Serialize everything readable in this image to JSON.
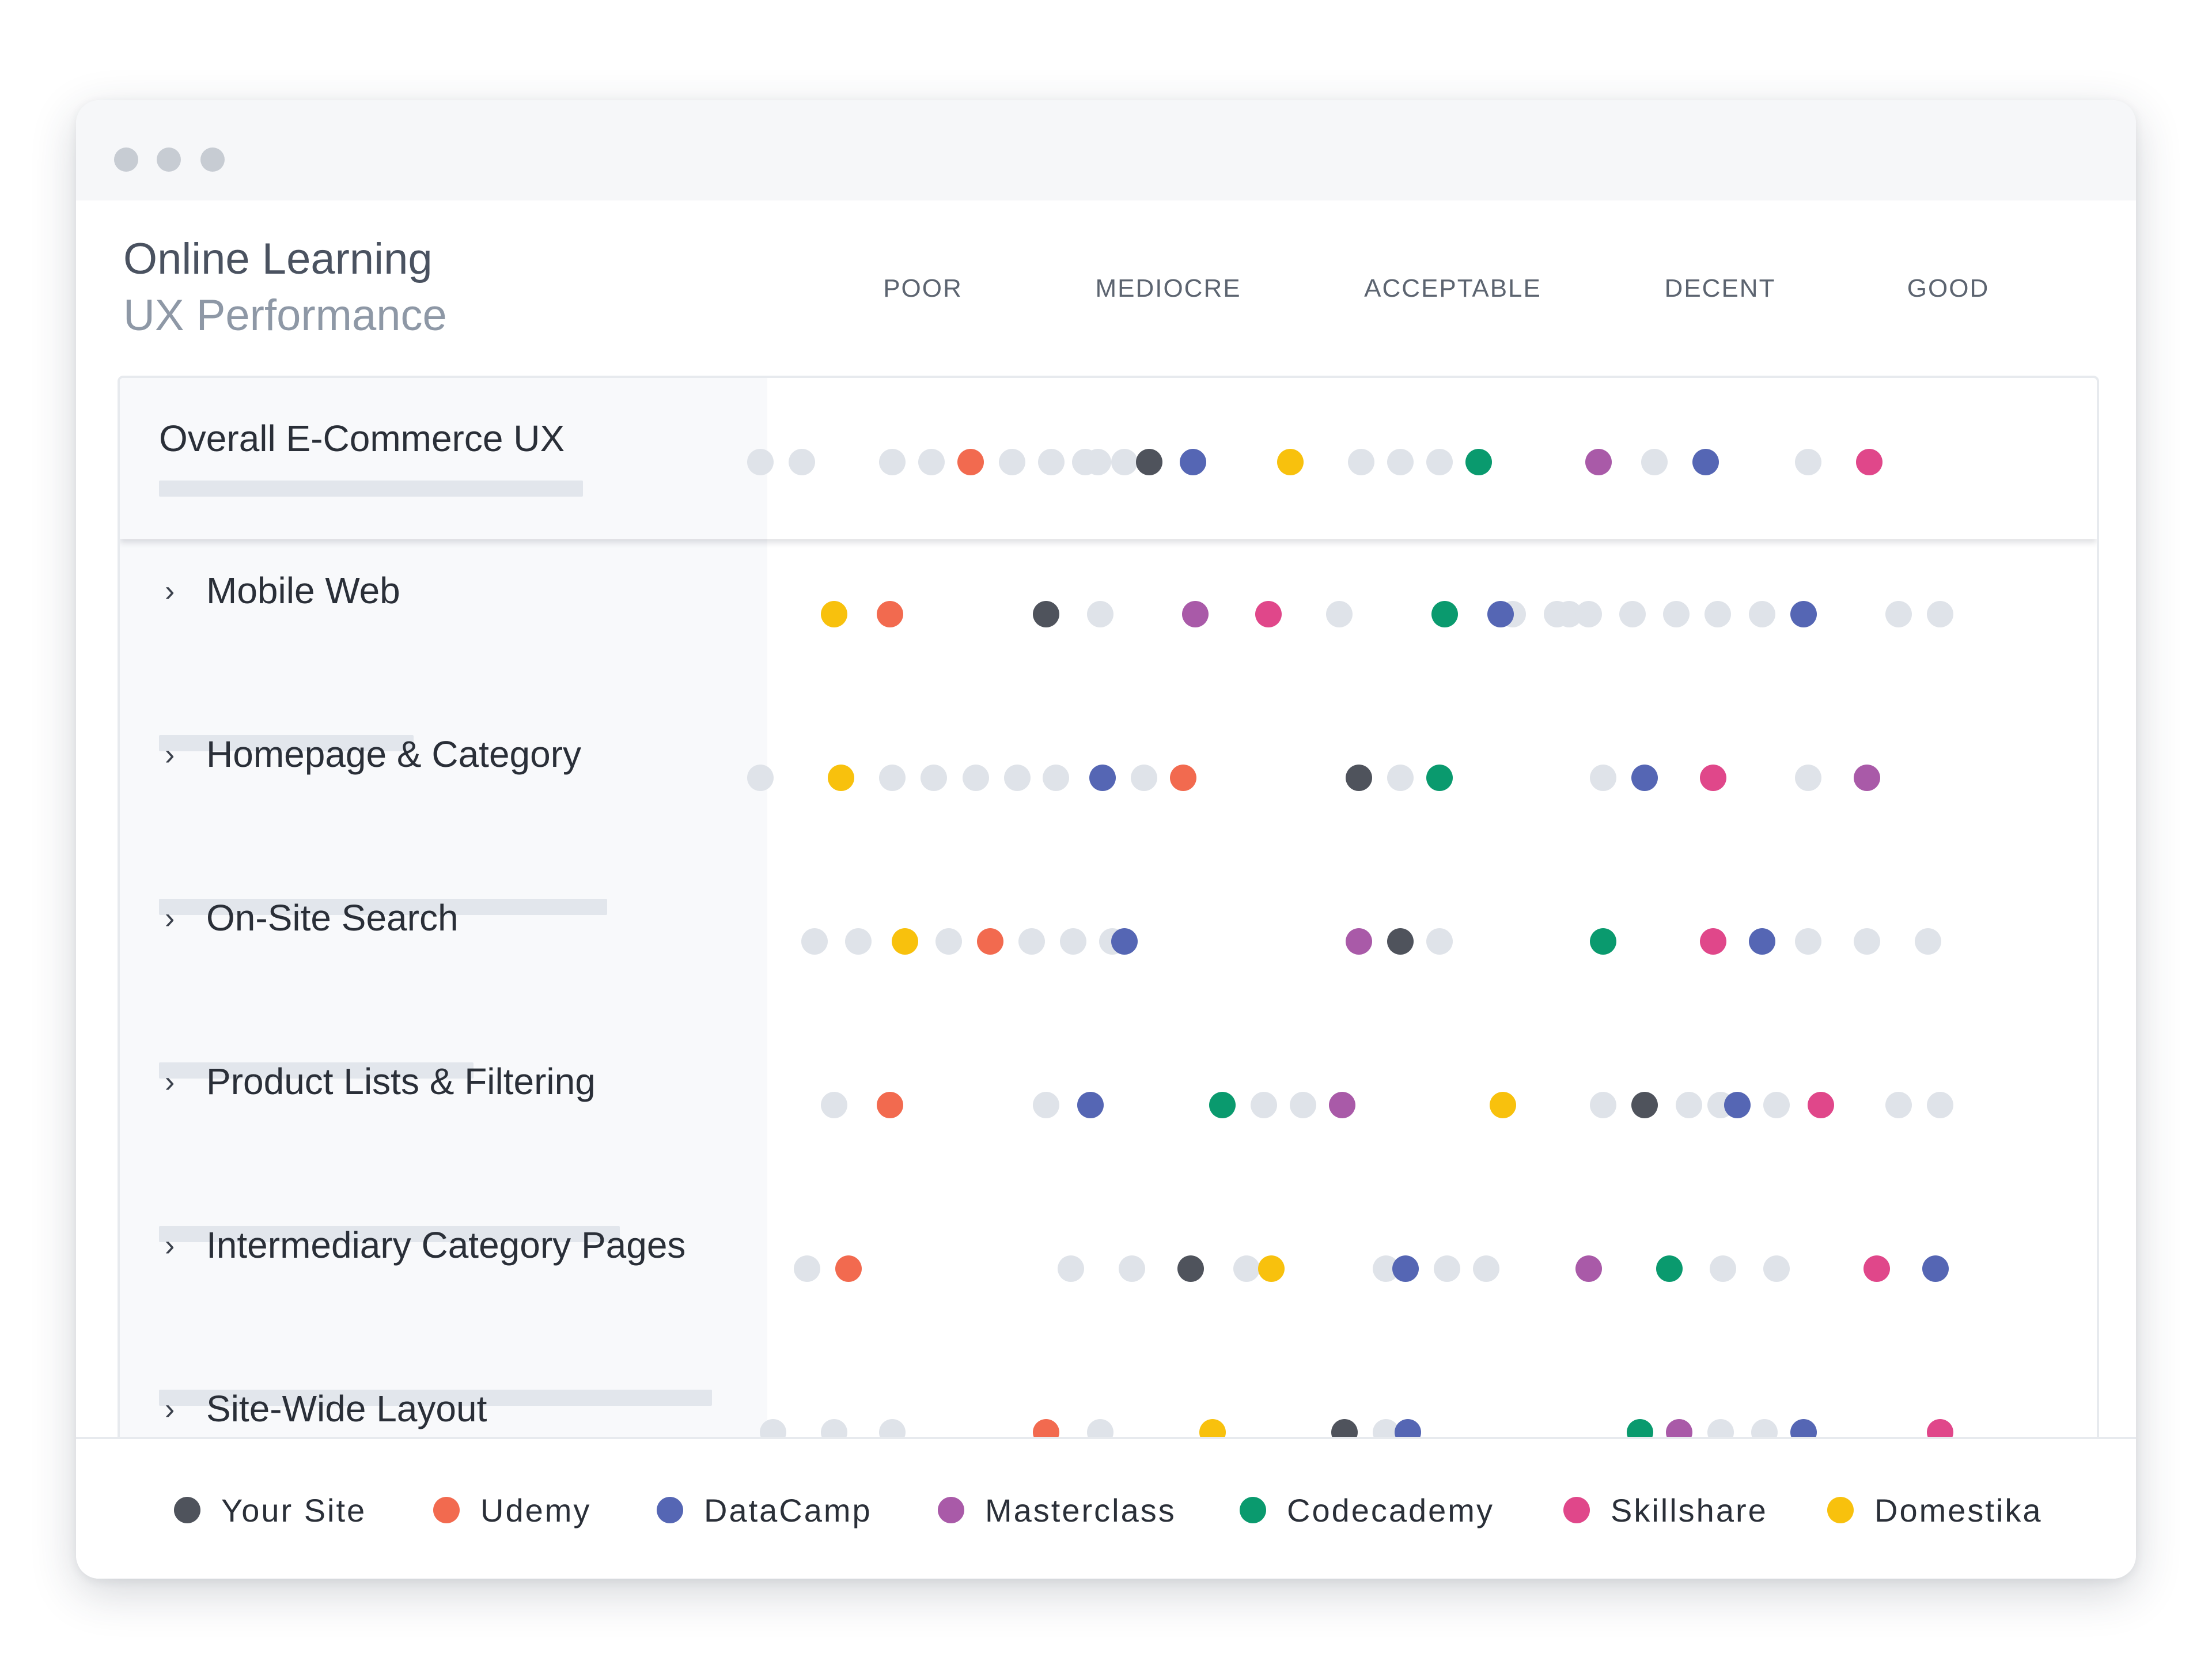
{
  "header": {
    "title": "Online Learning",
    "subtitle": "UX Performance"
  },
  "window_controls": [
    "dot-icon",
    "dot-icon",
    "dot-icon"
  ],
  "columns": [
    "POOR",
    "MEDIOCRE",
    "ACCEPTABLE",
    "DECENT",
    "GOOD"
  ],
  "colors": {
    "grey": "#dfe3e9",
    "Your Site": "#4f535c",
    "Udemy": "#f26a4f",
    "DataCamp": "#5566b4",
    "Masterclass": "#a95aa8",
    "Codecademy": "#0a9a6e",
    "Skillshare": "#e0478a",
    "Domestika": "#f8c10d"
  },
  "rows": [
    {
      "label": "Overall E-Commerce UX",
      "expandable": false
    },
    {
      "label": "Mobile Web",
      "expandable": true
    },
    {
      "label": "Homepage & Category",
      "expandable": true
    },
    {
      "label": "On-Site Search",
      "expandable": true
    },
    {
      "label": "Product Lists & Filtering",
      "expandable": true
    },
    {
      "label": "Intermediary Category Pages",
      "expandable": true
    },
    {
      "label": "Site-Wide Layout",
      "expandable": true
    }
  ],
  "legend": [
    {
      "label": "Your Site"
    },
    {
      "label": "Udemy"
    },
    {
      "label": "DataCamp"
    },
    {
      "label": "Masterclass"
    },
    {
      "label": "Codecademy"
    },
    {
      "label": "Skillshare"
    },
    {
      "label": "Domestika"
    }
  ],
  "chart_data": {
    "type": "scatter",
    "x_axis": "rating (0 = POOR, 4 = GOOD)",
    "xlim": [
      -0.55,
      4.45
    ],
    "categories_x": [
      "POOR",
      "MEDIOCRE",
      "ACCEPTABLE",
      "DECENT",
      "GOOD"
    ],
    "rows": [
      {
        "label": "Overall E-Commerce UX",
        "points": [
          {
            "x": -0.45,
            "s": "grey"
          },
          {
            "x": -0.28,
            "s": "grey"
          },
          {
            "x": 0.09,
            "s": "grey"
          },
          {
            "x": 0.25,
            "s": "grey"
          },
          {
            "x": 0.41,
            "s": "Udemy"
          },
          {
            "x": 0.58,
            "s": "grey"
          },
          {
            "x": 0.74,
            "s": "grey"
          },
          {
            "x": 0.88,
            "s": "grey"
          },
          {
            "x": 0.93,
            "s": "grey"
          },
          {
            "x": 1.04,
            "s": "grey"
          },
          {
            "x": 1.14,
            "s": "Your Site"
          },
          {
            "x": 1.32,
            "s": "DataCamp"
          },
          {
            "x": 1.72,
            "s": "Domestika"
          },
          {
            "x": 2.01,
            "s": "grey"
          },
          {
            "x": 2.17,
            "s": "grey"
          },
          {
            "x": 2.33,
            "s": "grey"
          },
          {
            "x": 2.49,
            "s": "Codecademy"
          },
          {
            "x": 2.98,
            "s": "Masterclass"
          },
          {
            "x": 3.21,
            "s": "grey"
          },
          {
            "x": 3.42,
            "s": "DataCamp"
          },
          {
            "x": 3.84,
            "s": "grey"
          },
          {
            "x": 4.09,
            "s": "Skillshare"
          }
        ]
      },
      {
        "label": "Mobile Web",
        "points": [
          {
            "x": -0.15,
            "s": "Domestika"
          },
          {
            "x": 0.08,
            "s": "Udemy"
          },
          {
            "x": 0.72,
            "s": "Your Site"
          },
          {
            "x": 0.94,
            "s": "grey"
          },
          {
            "x": 1.33,
            "s": "Masterclass"
          },
          {
            "x": 1.63,
            "s": "Skillshare"
          },
          {
            "x": 1.92,
            "s": "grey"
          },
          {
            "x": 2.35,
            "s": "Codecademy"
          },
          {
            "x": 2.58,
            "s": "DataCamp"
          },
          {
            "x": 2.63,
            "s": "grey"
          },
          {
            "x": 2.81,
            "s": "grey"
          },
          {
            "x": 2.86,
            "s": "grey"
          },
          {
            "x": 2.94,
            "s": "grey"
          },
          {
            "x": 3.12,
            "s": "grey"
          },
          {
            "x": 3.3,
            "s": "grey"
          },
          {
            "x": 3.47,
            "s": "grey"
          },
          {
            "x": 3.65,
            "s": "grey"
          },
          {
            "x": 3.82,
            "s": "DataCamp"
          },
          {
            "x": 4.21,
            "s": "grey"
          },
          {
            "x": 4.38,
            "s": "grey"
          }
        ]
      },
      {
        "label": "Homepage & Category",
        "points": [
          {
            "x": -0.45,
            "s": "grey"
          },
          {
            "x": -0.12,
            "s": "Domestika"
          },
          {
            "x": 0.09,
            "s": "grey"
          },
          {
            "x": 0.26,
            "s": "grey"
          },
          {
            "x": 0.43,
            "s": "grey"
          },
          {
            "x": 0.6,
            "s": "grey"
          },
          {
            "x": 0.76,
            "s": "grey"
          },
          {
            "x": 0.95,
            "s": "DataCamp"
          },
          {
            "x": 1.12,
            "s": "grey"
          },
          {
            "x": 1.28,
            "s": "Udemy"
          },
          {
            "x": 2.0,
            "s": "Your Site"
          },
          {
            "x": 2.17,
            "s": "grey"
          },
          {
            "x": 2.33,
            "s": "Codecademy"
          },
          {
            "x": 3.0,
            "s": "grey"
          },
          {
            "x": 3.17,
            "s": "DataCamp"
          },
          {
            "x": 3.45,
            "s": "Skillshare"
          },
          {
            "x": 3.84,
            "s": "grey"
          },
          {
            "x": 4.08,
            "s": "Masterclass"
          }
        ]
      },
      {
        "label": "On-Site Search",
        "points": [
          {
            "x": -0.23,
            "s": "grey"
          },
          {
            "x": -0.05,
            "s": "grey"
          },
          {
            "x": 0.14,
            "s": "Domestika"
          },
          {
            "x": 0.32,
            "s": "grey"
          },
          {
            "x": 0.49,
            "s": "Udemy"
          },
          {
            "x": 0.66,
            "s": "grey"
          },
          {
            "x": 0.83,
            "s": "grey"
          },
          {
            "x": 0.99,
            "s": "grey"
          },
          {
            "x": 1.04,
            "s": "DataCamp"
          },
          {
            "x": 2.0,
            "s": "Masterclass"
          },
          {
            "x": 2.17,
            "s": "Your Site"
          },
          {
            "x": 2.33,
            "s": "grey"
          },
          {
            "x": 3.0,
            "s": "Codecademy"
          },
          {
            "x": 3.45,
            "s": "Skillshare"
          },
          {
            "x": 3.65,
            "s": "DataCamp"
          },
          {
            "x": 3.84,
            "s": "grey"
          },
          {
            "x": 4.08,
            "s": "grey"
          },
          {
            "x": 4.33,
            "s": "grey"
          }
        ]
      },
      {
        "label": "Product Lists & Filtering",
        "points": [
          {
            "x": -0.15,
            "s": "grey"
          },
          {
            "x": 0.08,
            "s": "Udemy"
          },
          {
            "x": 0.72,
            "s": "grey"
          },
          {
            "x": 0.9,
            "s": "grey"
          },
          {
            "x": 0.9,
            "s": "DataCamp"
          },
          {
            "x": 1.44,
            "s": "Codecademy"
          },
          {
            "x": 1.61,
            "s": "grey"
          },
          {
            "x": 1.77,
            "s": "grey"
          },
          {
            "x": 1.93,
            "s": "Masterclass"
          },
          {
            "x": 2.59,
            "s": "Domestika"
          },
          {
            "x": 3.0,
            "s": "grey"
          },
          {
            "x": 3.17,
            "s": "Your Site"
          },
          {
            "x": 3.35,
            "s": "grey"
          },
          {
            "x": 3.48,
            "s": "grey"
          },
          {
            "x": 3.55,
            "s": "DataCamp"
          },
          {
            "x": 3.71,
            "s": "grey"
          },
          {
            "x": 3.89,
            "s": "Skillshare"
          },
          {
            "x": 4.21,
            "s": "grey"
          },
          {
            "x": 4.38,
            "s": "grey"
          }
        ]
      },
      {
        "label": "Intermediary Category Pages",
        "points": [
          {
            "x": -0.26,
            "s": "grey"
          },
          {
            "x": -0.09,
            "s": "Udemy"
          },
          {
            "x": 0.82,
            "s": "grey"
          },
          {
            "x": 1.07,
            "s": "grey"
          },
          {
            "x": 1.31,
            "s": "Your Site"
          },
          {
            "x": 1.54,
            "s": "grey"
          },
          {
            "x": 1.64,
            "s": "Domestika"
          },
          {
            "x": 2.11,
            "s": "grey"
          },
          {
            "x": 2.19,
            "s": "DataCamp"
          },
          {
            "x": 2.36,
            "s": "grey"
          },
          {
            "x": 2.52,
            "s": "grey"
          },
          {
            "x": 2.94,
            "s": "Masterclass"
          },
          {
            "x": 3.27,
            "s": "Codecademy"
          },
          {
            "x": 3.49,
            "s": "grey"
          },
          {
            "x": 3.71,
            "s": "grey"
          },
          {
            "x": 4.12,
            "s": "Skillshare"
          },
          {
            "x": 4.36,
            "s": "DataCamp"
          }
        ]
      },
      {
        "label": "Site-Wide Layout",
        "points": [
          {
            "x": -0.4,
            "s": "grey"
          },
          {
            "x": -0.15,
            "s": "grey"
          },
          {
            "x": 0.09,
            "s": "grey"
          },
          {
            "x": 0.72,
            "s": "Udemy"
          },
          {
            "x": 0.94,
            "s": "grey"
          },
          {
            "x": 1.4,
            "s": "Domestika"
          },
          {
            "x": 1.94,
            "s": "Your Site"
          },
          {
            "x": 2.11,
            "s": "grey"
          },
          {
            "x": 2.2,
            "s": "DataCamp"
          },
          {
            "x": 3.15,
            "s": "Codecademy"
          },
          {
            "x": 3.31,
            "s": "Masterclass"
          },
          {
            "x": 3.48,
            "s": "grey"
          },
          {
            "x": 3.66,
            "s": "grey"
          },
          {
            "x": 3.82,
            "s": "DataCamp"
          },
          {
            "x": 4.38,
            "s": "Skillshare"
          }
        ]
      }
    ]
  }
}
